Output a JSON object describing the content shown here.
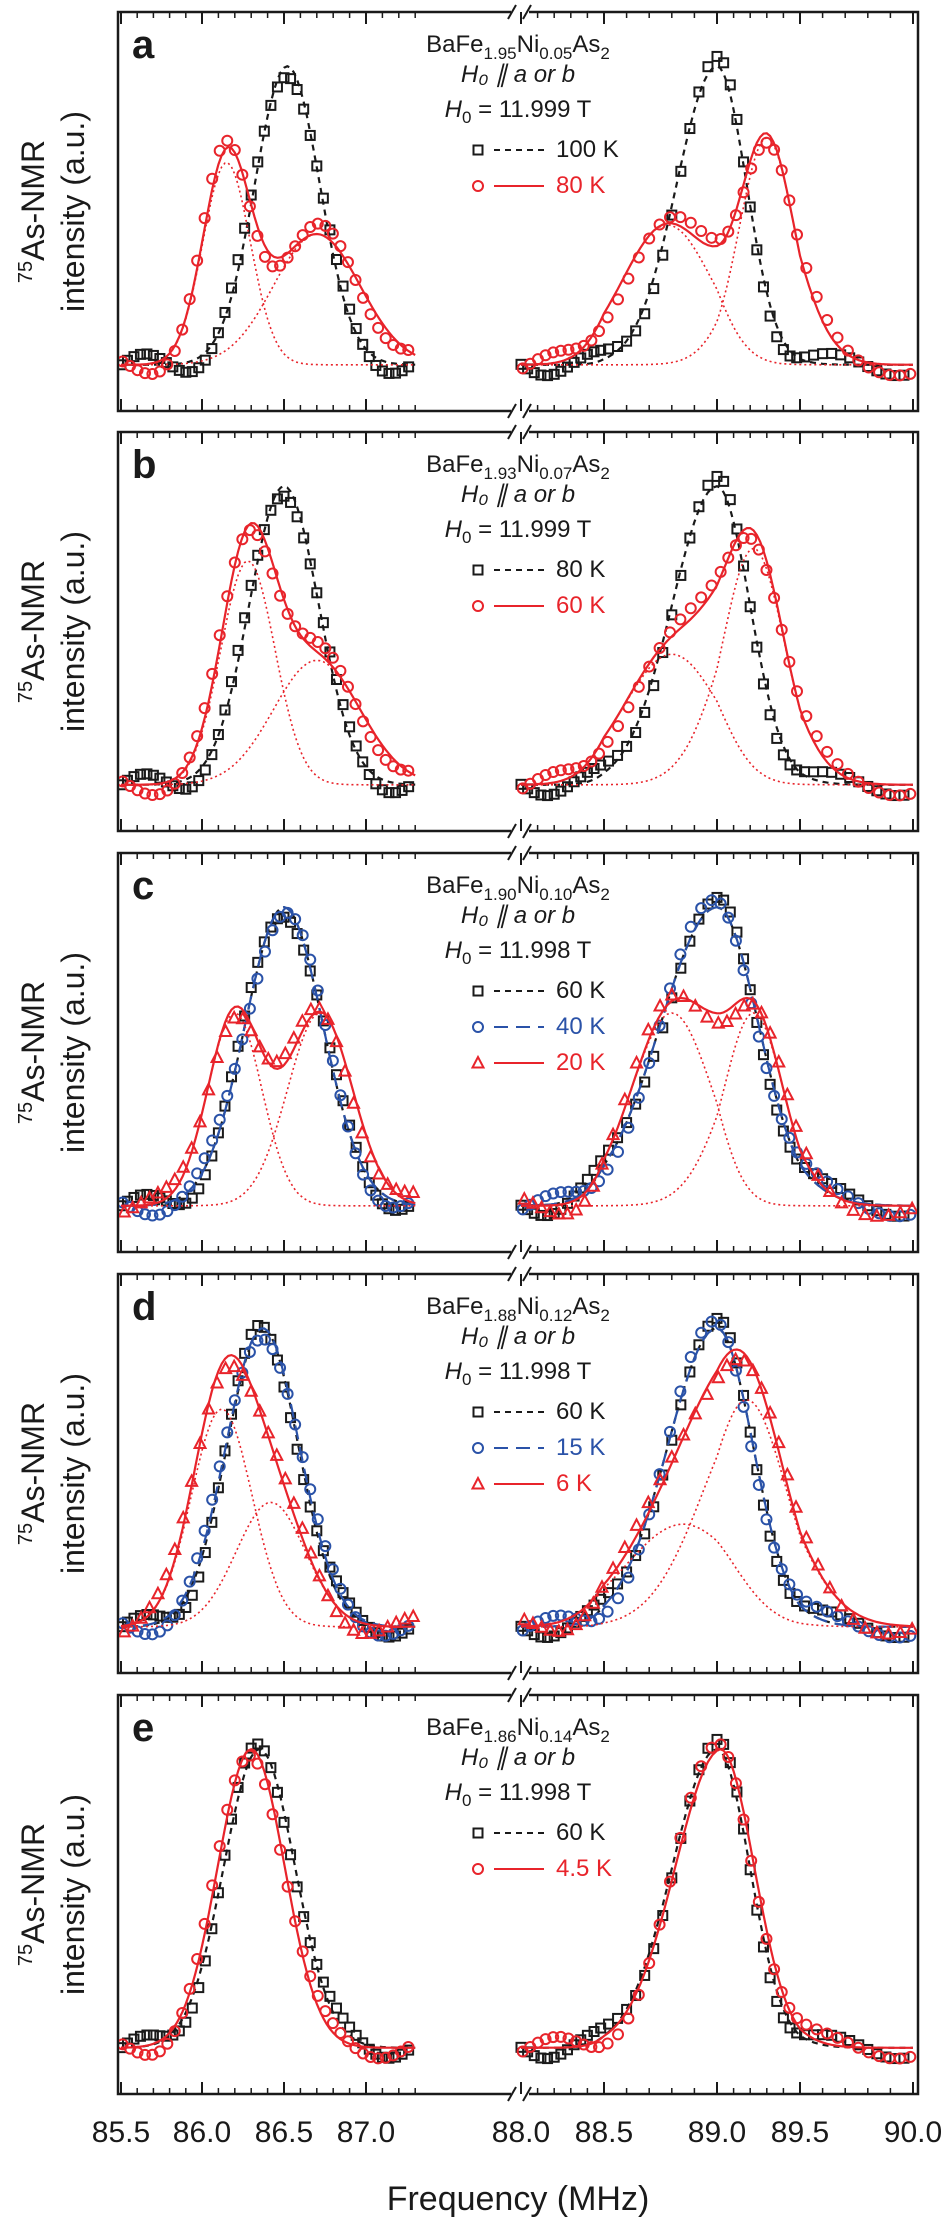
{
  "figure": {
    "ylabel_nucleus": "75",
    "ylabel_line1": "As-NMR",
    "ylabel_line2": "intensity (a.u.)",
    "xlabel": "Frequency (MHz)",
    "xticks": [
      "85.5",
      "86.0",
      "86.5",
      "87.0",
      "88.0",
      "88.5",
      "89.0",
      "89.5",
      "90.0"
    ]
  },
  "colors": {
    "black": "#1a1a1a",
    "red": "#e8242b",
    "blue": "#2a52a8"
  },
  "chart_data": [
    {
      "type": "scatter",
      "panel": "a",
      "title_parts": [
        "BaFe",
        "1.95",
        "Ni",
        "0.05",
        "As",
        "2"
      ],
      "field_direction": "H0 || a or b",
      "field_value": "H0 = 11.999 T",
      "field_label": "= 11.999 T",
      "xlabel": "Frequency (MHz)",
      "ylabel": "75As-NMR intensity (a.u.)",
      "x_axis_break": [
        87.3,
        88.0
      ],
      "xlim_left": [
        85.5,
        87.3
      ],
      "xlim_right": [
        88.0,
        90.0
      ],
      "ylim": [
        0,
        1
      ],
      "series": [
        {
          "name": "100 K",
          "color": "#1a1a1a",
          "marker": "square",
          "line": "dashed",
          "left_peak": 86.52,
          "left_width": 0.3,
          "right_peak": 89.0,
          "right_width": 0.27,
          "baseline": 0.02
        },
        {
          "name": "80 K",
          "color": "#e8242b",
          "marker": "circle",
          "line": "solid",
          "components": [
            {
              "peak": 86.15,
              "width": 0.22,
              "amplitude": 0.65
            },
            {
              "peak": 86.7,
              "width": 0.4,
              "amplitude": 0.42
            },
            {
              "peak": 88.78,
              "width": 0.3,
              "amplitude": 0.45
            },
            {
              "peak": 89.3,
              "width": 0.25,
              "amplitude": 0.73
            }
          ]
        }
      ]
    },
    {
      "type": "scatter",
      "panel": "b",
      "title_parts": [
        "BaFe",
        "1.93",
        "Ni",
        "0.07",
        "As",
        "2"
      ],
      "field_direction": "H0 || a or b",
      "field_value": "H0 = 11.999 T",
      "field_label": "= 11.999 T",
      "xlabel": "Frequency (MHz)",
      "ylabel": "75As-NMR intensity (a.u.)",
      "x_axis_break": [
        87.3,
        88.0
      ],
      "xlim_left": [
        85.5,
        87.3
      ],
      "xlim_right": [
        88.0,
        90.0
      ],
      "ylim": [
        0,
        1
      ],
      "series": [
        {
          "name": "80 K",
          "color": "#1a1a1a",
          "marker": "square",
          "line": "dashed",
          "left_peak": 86.5,
          "left_width": 0.32,
          "right_peak": 89.0,
          "right_width": 0.3,
          "baseline": 0.02
        },
        {
          "name": "60 K",
          "color": "#e8242b",
          "marker": "circle",
          "line": "solid",
          "components": [
            {
              "peak": 86.28,
              "width": 0.25,
              "amplitude": 0.72
            },
            {
              "peak": 86.7,
              "width": 0.4,
              "amplitude": 0.4
            },
            {
              "peak": 88.8,
              "width": 0.32,
              "amplitude": 0.42
            },
            {
              "peak": 89.22,
              "width": 0.28,
              "amplitude": 0.76
            }
          ]
        }
      ]
    },
    {
      "type": "scatter",
      "panel": "c",
      "title_parts": [
        "BaFe",
        "1.90",
        "Ni",
        "0.10",
        "As",
        "2"
      ],
      "field_direction": "H0 || a or b",
      "field_value": "H0 = 11.998 T",
      "field_label": "= 11.998 T",
      "xlabel": "Frequency (MHz)",
      "ylabel": "75As-NMR intensity (a.u.)",
      "x_axis_break": [
        87.3,
        88.0
      ],
      "xlim_left": [
        85.5,
        87.3
      ],
      "xlim_right": [
        88.0,
        90.0
      ],
      "ylim": [
        0,
        1
      ],
      "series": [
        {
          "name": "60 K",
          "color": "#1a1a1a",
          "marker": "square",
          "line": "dashed",
          "left_peak": 86.5,
          "left_width": 0.36,
          "right_peak": 89.0,
          "right_width": 0.38,
          "baseline": 0.02
        },
        {
          "name": "40 K",
          "color": "#2a52a8",
          "marker": "circle",
          "line": "longdash",
          "left_peak": 86.5,
          "left_width": 0.36,
          "right_peak": 89.0,
          "right_width": 0.38,
          "baseline": 0.02
        },
        {
          "name": "20 K",
          "color": "#e8242b",
          "marker": "triangle",
          "line": "solid",
          "components": [
            {
              "peak": 86.2,
              "width": 0.25,
              "amplitude": 0.62
            },
            {
              "peak": 86.72,
              "width": 0.3,
              "amplitude": 0.62
            },
            {
              "peak": 88.8,
              "width": 0.27,
              "amplitude": 0.62
            },
            {
              "peak": 89.22,
              "width": 0.27,
              "amplitude": 0.62
            }
          ]
        }
      ]
    },
    {
      "type": "scatter",
      "panel": "d",
      "title_parts": [
        "BaFe",
        "1.88",
        "Ni",
        "0.12",
        "As",
        "2"
      ],
      "field_direction": "H0 || a or b",
      "field_value": "H0 = 11.998 T",
      "field_label": "= 11.998 T",
      "xlabel": "Frequency (MHz)",
      "ylabel": "75As-NMR intensity (a.u.)",
      "x_axis_break": [
        87.3,
        88.0
      ],
      "xlim_left": [
        85.5,
        87.3
      ],
      "xlim_right": [
        88.0,
        90.0
      ],
      "ylim": [
        0,
        1
      ],
      "series": [
        {
          "name": "60 K",
          "color": "#1a1a1a",
          "marker": "square",
          "line": "dashed",
          "left_peak": 86.37,
          "left_width": 0.33,
          "right_peak": 89.0,
          "right_width": 0.33,
          "baseline": 0.02
        },
        {
          "name": "15 K",
          "color": "#2a52a8",
          "marker": "circle",
          "line": "longdash",
          "left_peak": 86.37,
          "left_width": 0.34,
          "right_peak": 89.0,
          "right_width": 0.33,
          "baseline": 0.02
        },
        {
          "name": "6 K",
          "color": "#e8242b",
          "marker": "triangle",
          "line": "solid",
          "components": [
            {
              "peak": 86.12,
              "width": 0.28,
              "amplitude": 0.7
            },
            {
              "peak": 86.42,
              "width": 0.32,
              "amplitude": 0.4
            },
            {
              "peak": 88.85,
              "width": 0.38,
              "amplitude": 0.33
            },
            {
              "peak": 89.18,
              "width": 0.36,
              "amplitude": 0.73
            }
          ]
        }
      ]
    },
    {
      "type": "scatter",
      "panel": "e",
      "title_parts": [
        "BaFe",
        "1.86",
        "Ni",
        "0.14",
        "As",
        "2"
      ],
      "field_direction": "H0 || a or b",
      "field_value": "H0 = 11.998 T",
      "field_label": "= 11.998 T",
      "xlabel": "Frequency (MHz)",
      "ylabel": "75As-NMR intensity (a.u.)",
      "x_axis_break": [
        87.3,
        88.0
      ],
      "xlim_left": [
        85.5,
        87.3
      ],
      "xlim_right": [
        88.0,
        90.0
      ],
      "ylim": [
        0,
        1
      ],
      "series": [
        {
          "name": "60 K",
          "color": "#1a1a1a",
          "marker": "square",
          "line": "dashed",
          "left_peak": 86.35,
          "left_width": 0.33,
          "right_peak": 89.0,
          "right_width": 0.3,
          "baseline": 0.02
        },
        {
          "name": "4.5 K",
          "color": "#e8242b",
          "marker": "circle",
          "line": "solid",
          "left_peak": 86.3,
          "left_width": 0.31,
          "right_peak": 89.02,
          "right_width": 0.31,
          "baseline": 0.02
        }
      ]
    }
  ]
}
